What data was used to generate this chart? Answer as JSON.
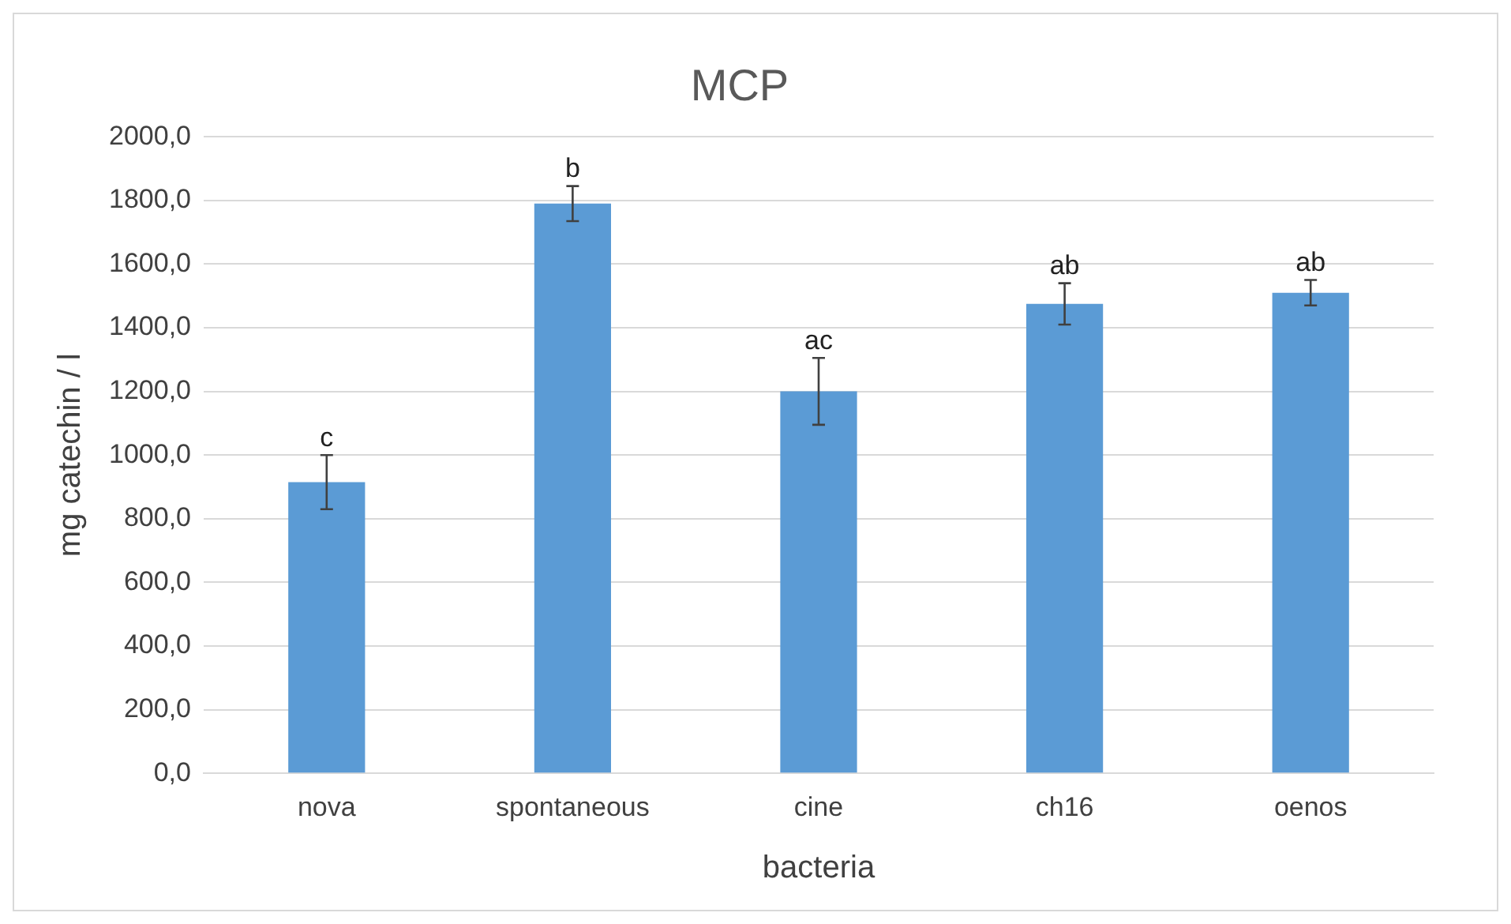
{
  "chart_data": {
    "type": "bar",
    "title": "MCP",
    "xlabel": "bacteria",
    "ylabel": "mg catechin / l",
    "categories": [
      "nova",
      "spontaneous",
      "cine",
      "ch16",
      "oenos"
    ],
    "values": [
      915,
      1790,
      1200,
      1475,
      1510
    ],
    "errors": [
      85,
      55,
      105,
      65,
      40
    ],
    "color": "#5b9bd5",
    "ylim": [
      0,
      2000
    ],
    "yticks": [
      {
        "value": 0,
        "label": "0,0"
      },
      {
        "value": 200,
        "label": "200,0"
      },
      {
        "value": 400,
        "label": "400,0"
      },
      {
        "value": 600,
        "label": "600,0"
      },
      {
        "value": 800,
        "label": "800,0"
      },
      {
        "value": 1000,
        "label": "1000,0"
      },
      {
        "value": 1200,
        "label": "1200,0"
      },
      {
        "value": 1400,
        "label": "1400,0"
      },
      {
        "value": 1600,
        "label": "1600,0"
      },
      {
        "value": 1800,
        "label": "1800,0"
      },
      {
        "value": 2000,
        "label": "2000,0"
      }
    ],
    "grid": "y",
    "annotations": [
      {
        "text": "c",
        "x": "nova",
        "y": 1000
      },
      {
        "text": "b",
        "x": "spontaneous",
        "y": 1845
      },
      {
        "text": "ac",
        "x": "cine",
        "y": 1305
      },
      {
        "text": "ab",
        "x": "ch16",
        "y": 1540
      },
      {
        "text": "ab",
        "x": "oenos",
        "y": 1550
      }
    ]
  }
}
